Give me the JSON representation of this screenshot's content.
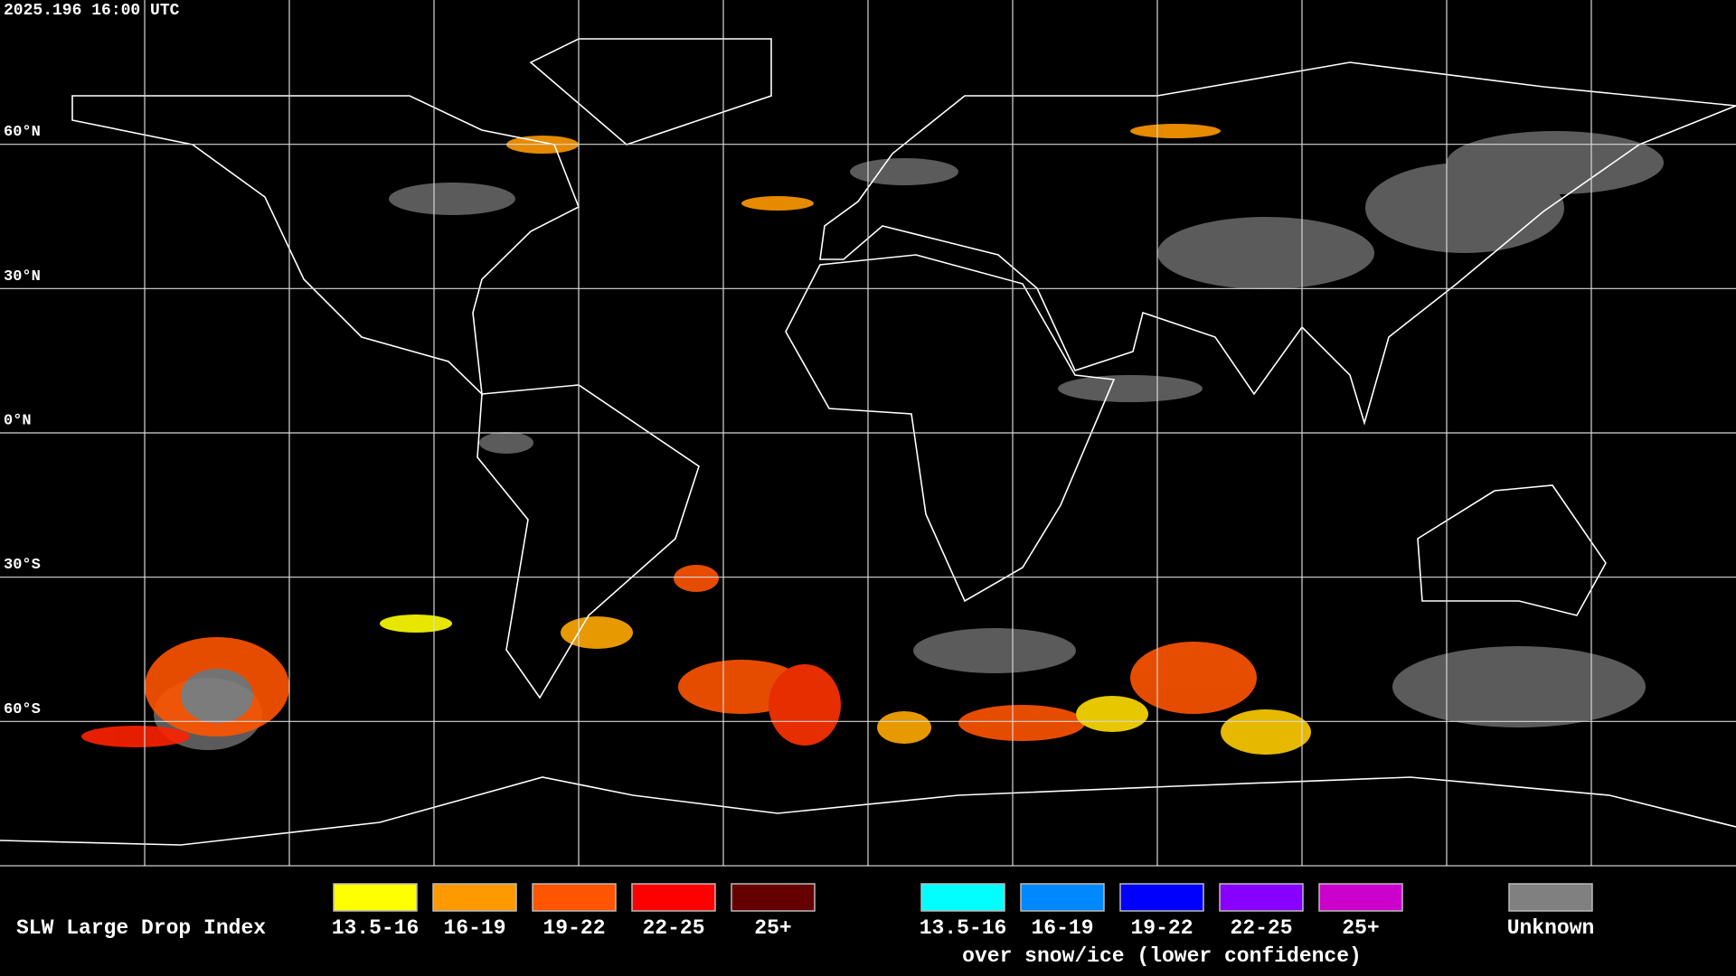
{
  "header": {
    "timestamp": "2025.196 16:00 UTC"
  },
  "map": {
    "latitude_labels": [
      "60°N",
      "30°N",
      "0°N",
      "30°S",
      "60°S"
    ]
  },
  "legend": {
    "title": "SLW Large Drop Index",
    "groups": [
      {
        "items": [
          {
            "label": "13.5-16",
            "color": "#ffff00"
          },
          {
            "label": "16-19",
            "color": "#ff9900"
          },
          {
            "label": "19-22",
            "color": "#ff5500"
          },
          {
            "label": "22-25",
            "color": "#ff0000"
          },
          {
            "label": "25+",
            "color": "#660000"
          }
        ]
      },
      {
        "items": [
          {
            "label": "13.5-16",
            "color": "#00ffff"
          },
          {
            "label": "16-19",
            "color": "#0088ff"
          },
          {
            "label": "19-22",
            "color": "#0000ff"
          },
          {
            "label": "22-25",
            "color": "#8800ff"
          },
          {
            "label": "25+",
            "color": "#cc00cc"
          }
        ],
        "note": "over snow/ice (lower confidence)"
      },
      {
        "items": [
          {
            "label": "Unknown",
            "color": "#808080"
          }
        ]
      }
    ]
  }
}
